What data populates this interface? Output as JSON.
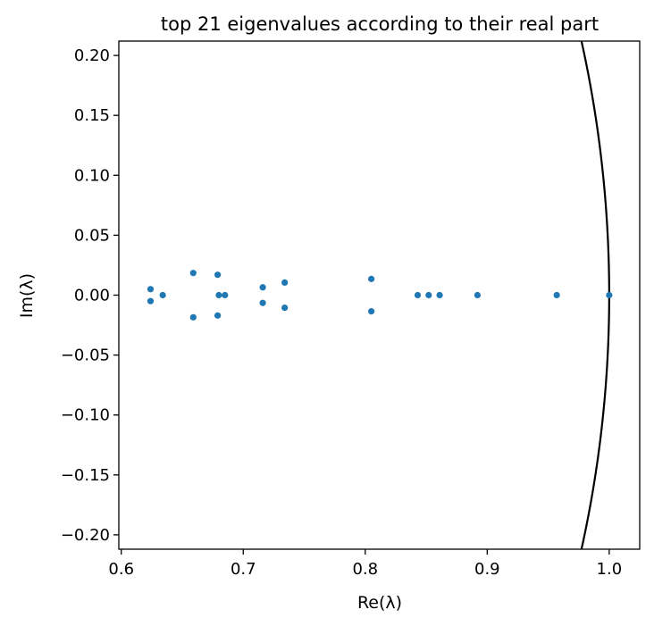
{
  "chart_data": {
    "type": "scatter",
    "title": "top 21 eigenvalues according to their real part",
    "xlabel": "Re(λ)",
    "ylabel": "Im(λ)",
    "xlim": [
      0.598,
      1.025
    ],
    "ylim": [
      -0.212,
      0.212
    ],
    "xticks": [
      0.6,
      0.7,
      0.8,
      0.9,
      1.0
    ],
    "xtick_labels": [
      "0.6",
      "0.7",
      "0.8",
      "0.9",
      "1.0"
    ],
    "yticks": [
      0.2,
      0.15,
      0.1,
      0.05,
      0.0,
      -0.05,
      -0.1,
      -0.15,
      -0.2
    ],
    "ytick_labels": [
      "0.20",
      "0.15",
      "0.10",
      "0.05",
      "0.00",
      "−0.05",
      "−0.10",
      "−0.15",
      "−0.20"
    ],
    "grid": false,
    "marker_color": "#1f77b4",
    "curve": {
      "description": "unit circle",
      "radius": 1.0,
      "color": "#000000"
    },
    "points": [
      {
        "x": 1.0,
        "y": 0.0
      },
      {
        "x": 0.957,
        "y": 0.0
      },
      {
        "x": 0.892,
        "y": 0.0
      },
      {
        "x": 0.861,
        "y": 0.0
      },
      {
        "x": 0.852,
        "y": 0.0
      },
      {
        "x": 0.843,
        "y": 0.0
      },
      {
        "x": 0.805,
        "y": 0.0135
      },
      {
        "x": 0.805,
        "y": -0.0135
      },
      {
        "x": 0.734,
        "y": 0.0105
      },
      {
        "x": 0.734,
        "y": -0.0105
      },
      {
        "x": 0.716,
        "y": 0.0065
      },
      {
        "x": 0.716,
        "y": -0.0065
      },
      {
        "x": 0.685,
        "y": 0.0
      },
      {
        "x": 0.68,
        "y": 0.0
      },
      {
        "x": 0.679,
        "y": 0.017
      },
      {
        "x": 0.679,
        "y": -0.017
      },
      {
        "x": 0.659,
        "y": 0.0185
      },
      {
        "x": 0.659,
        "y": -0.0185
      },
      {
        "x": 0.634,
        "y": 0.0
      },
      {
        "x": 0.624,
        "y": 0.005
      },
      {
        "x": 0.624,
        "y": -0.005
      }
    ]
  }
}
